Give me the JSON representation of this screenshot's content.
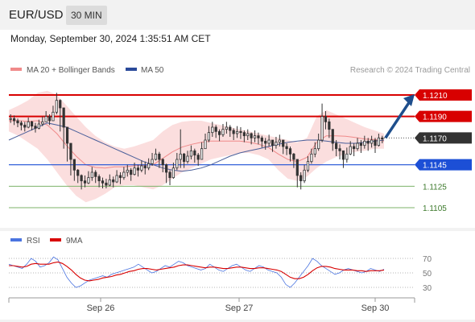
{
  "header": {
    "symbol": "EUR/USD",
    "timeframe": "30 MIN"
  },
  "timestamp": "Monday, September 30, 2024 1:35:51 AM CET",
  "legend": {
    "bollinger": "MA 20 + Bollinger Bands",
    "ma50": "MA 50",
    "copyright": "Research © 2024 Trading Central"
  },
  "colors": {
    "resistance": "#d80000",
    "support": "#1c4fd6",
    "minor": "#7cb36a",
    "last": "#333333",
    "bollinger": "#f08a8a",
    "ma50": "#4a5f9a",
    "candle": "#333333",
    "arrow": "#1e4e8c",
    "rsi": "#4a74e0",
    "rsi_ma": "#d80000"
  },
  "chart_data": [
    {
      "type": "candlestick",
      "x_ticks": [
        "Sep 26",
        "Sep 27",
        "Sep 30"
      ],
      "ylim": [
        1.1087,
        1.1225
      ],
      "levels": [
        {
          "value": 1.121,
          "label": "1.1210",
          "kind": "resistance"
        },
        {
          "value": 1.119,
          "label": "1.1190",
          "kind": "resistance"
        },
        {
          "value": 1.117,
          "label": "1.1170",
          "kind": "last"
        },
        {
          "value": 1.1145,
          "label": "1.1145",
          "kind": "support"
        },
        {
          "value": 1.1125,
          "label": "1.1125",
          "kind": "minor"
        },
        {
          "value": 1.1105,
          "label": "1.1105",
          "kind": "minor"
        }
      ],
      "last_price": 1.117,
      "close": [
        1.1188,
        1.1186,
        1.1184,
        1.1182,
        1.118,
        1.1185,
        1.1181,
        1.1179,
        1.1183,
        1.1185,
        1.119,
        1.1186,
        1.1194,
        1.1205,
        1.1198,
        1.118,
        1.1165,
        1.115,
        1.114,
        1.1135,
        1.113,
        1.1128,
        1.1133,
        1.1138,
        1.1134,
        1.113,
        1.1128,
        1.1126,
        1.1131,
        1.1129,
        1.1135,
        1.1133,
        1.1138,
        1.114,
        1.1136,
        1.1142,
        1.114,
        1.1144,
        1.1142,
        1.1146,
        1.115,
        1.1155,
        1.115,
        1.1145,
        1.1138,
        1.1133,
        1.1142,
        1.115,
        1.1155,
        1.1148,
        1.1153,
        1.1158,
        1.1154,
        1.115,
        1.116,
        1.1168,
        1.1175,
        1.118,
        1.1176,
        1.1173,
        1.1178,
        1.118,
        1.1177,
        1.1174,
        1.1176,
        1.1175,
        1.1172,
        1.1174,
        1.117,
        1.1172,
        1.117,
        1.1167,
        1.1165,
        1.1168,
        1.1163,
        1.1166,
        1.1168,
        1.1162,
        1.116,
        1.1155,
        1.115,
        1.1135,
        1.113,
        1.114,
        1.1148,
        1.1155,
        1.116,
        1.1168,
        1.119,
        1.1185,
        1.1178,
        1.1165,
        1.116,
        1.1158,
        1.115,
        1.1155,
        1.1162,
        1.116,
        1.1165,
        1.1163,
        1.1167,
        1.1165,
        1.1168,
        1.1163,
        1.117,
        1.1169
      ],
      "high": [
        1.1192,
        1.1191,
        1.1188,
        1.1186,
        1.1185,
        1.1189,
        1.1186,
        1.1184,
        1.1187,
        1.119,
        1.1195,
        1.1192,
        1.12,
        1.1212,
        1.1206,
        1.119,
        1.1172,
        1.1158,
        1.1146,
        1.1141,
        1.1136,
        1.1135,
        1.1139,
        1.1143,
        1.114,
        1.1136,
        1.1133,
        1.1132,
        1.1136,
        1.1134,
        1.114,
        1.1138,
        1.1143,
        1.1145,
        1.1142,
        1.1147,
        1.1145,
        1.1149,
        1.1148,
        1.1151,
        1.1156,
        1.116,
        1.1157,
        1.1151,
        1.1146,
        1.114,
        1.1147,
        1.1156,
        1.1178,
        1.1156,
        1.1158,
        1.1163,
        1.116,
        1.1156,
        1.1166,
        1.1174,
        1.1181,
        1.1185,
        1.1182,
        1.1178,
        1.1183,
        1.1185,
        1.1182,
        1.1179,
        1.1181,
        1.118,
        1.1177,
        1.1178,
        1.1175,
        1.1177,
        1.1175,
        1.1172,
        1.117,
        1.1173,
        1.1168,
        1.1171,
        1.1173,
        1.1168,
        1.1165,
        1.1162,
        1.1156,
        1.115,
        1.1138,
        1.1145,
        1.1153,
        1.116,
        1.1166,
        1.1174,
        1.1202,
        1.1195,
        1.1188,
        1.1178,
        1.1168,
        1.1164,
        1.1158,
        1.1161,
        1.1167,
        1.1165,
        1.117,
        1.1168,
        1.1172,
        1.117,
        1.1172,
        1.117,
        1.1174,
        1.1172
      ],
      "low": [
        1.1184,
        1.1182,
        1.118,
        1.1177,
        1.1176,
        1.1179,
        1.1177,
        1.1175,
        1.1178,
        1.1181,
        1.1185,
        1.1182,
        1.1188,
        1.1192,
        1.1176,
        1.116,
        1.1148,
        1.1135,
        1.113,
        1.1128,
        1.1122,
        1.1124,
        1.1127,
        1.113,
        1.1128,
        1.1124,
        1.1123,
        1.1123,
        1.1125,
        1.1124,
        1.1128,
        1.1127,
        1.1131,
        1.1134,
        1.113,
        1.1135,
        1.1134,
        1.1138,
        1.1136,
        1.114,
        1.1144,
        1.1149,
        1.1142,
        1.1138,
        1.1128,
        1.1126,
        1.1132,
        1.114,
        1.1142,
        1.1142,
        1.1146,
        1.115,
        1.1147,
        1.1144,
        1.1151,
        1.116,
        1.1166,
        1.1171,
        1.117,
        1.1167,
        1.1171,
        1.1174,
        1.1171,
        1.1168,
        1.117,
        1.1169,
        1.1166,
        1.1168,
        1.1164,
        1.1166,
        1.1164,
        1.1161,
        1.1159,
        1.1162,
        1.1157,
        1.116,
        1.1162,
        1.1155,
        1.1154,
        1.1148,
        1.1142,
        1.1124,
        1.1122,
        1.1128,
        1.1138,
        1.1146,
        1.1152,
        1.1158,
        1.1166,
        1.1178,
        1.117,
        1.1158,
        1.1153,
        1.115,
        1.1142,
        1.1147,
        1.1154,
        1.1153,
        1.1158,
        1.1156,
        1.116,
        1.1158,
        1.1161,
        1.1156,
        1.1162,
        1.1165
      ],
      "ma50": [
        1.1168,
        1.1172,
        1.1176,
        1.118,
        1.1184,
        1.1182,
        1.118,
        1.1176,
        1.1172,
        1.1168,
        1.1164,
        1.116,
        1.1156,
        1.1152,
        1.1148,
        1.1145,
        1.1142,
        1.114,
        1.1139,
        1.114,
        1.1142,
        1.1145,
        1.1149,
        1.1153,
        1.1156,
        1.1158,
        1.116,
        1.1162,
        1.1164,
        1.1166,
        1.1167,
        1.1168,
        1.1168,
        1.1167,
        1.1166,
        1.1165,
        1.1165,
        1.1166,
        1.1167,
        1.1168
      ],
      "bb_upper": [
        1.1196,
        1.12,
        1.1205,
        1.1212,
        1.1214,
        1.121,
        1.12,
        1.119,
        1.118,
        1.1172,
        1.1166,
        1.1162,
        1.116,
        1.1162,
        1.1165,
        1.1168,
        1.1176,
        1.1182,
        1.1185,
        1.1186,
        1.1186,
        1.1184,
        1.1182,
        1.118,
        1.1178,
        1.1176,
        1.1174,
        1.1172,
        1.117,
        1.1168,
        1.1166,
        1.117,
        1.119,
        1.1196,
        1.1192,
        1.1188,
        1.1184,
        1.118,
        1.1177,
        1.1174
      ],
      "bb_lower": [
        1.1176,
        1.1172,
        1.1166,
        1.116,
        1.115,
        1.1138,
        1.1126,
        1.1116,
        1.111,
        1.1113,
        1.1118,
        1.1124,
        1.1126,
        1.1126,
        1.1124,
        1.1122,
        1.1126,
        1.1132,
        1.1138,
        1.1142,
        1.1146,
        1.115,
        1.1152,
        1.1154,
        1.1156,
        1.1156,
        1.1154,
        1.115,
        1.114,
        1.1132,
        1.113,
        1.1134,
        1.1142,
        1.1148,
        1.1152,
        1.1155,
        1.1157,
        1.1158,
        1.116,
        1.116
      ],
      "forecast": {
        "from": 1.117,
        "to": 1.121
      }
    },
    {
      "type": "line",
      "series": [
        {
          "name": "RSI",
          "values": [
            62,
            60,
            58,
            56,
            62,
            70,
            66,
            58,
            60,
            64,
            72,
            68,
            56,
            44,
            36,
            30,
            32,
            36,
            40,
            42,
            44,
            46,
            44,
            48,
            50,
            52,
            54,
            56,
            58,
            62,
            58,
            54,
            50,
            52,
            56,
            60,
            58,
            62,
            66,
            64,
            60,
            58,
            56,
            54,
            56,
            62,
            58,
            54,
            52,
            56,
            60,
            62,
            58,
            54,
            52,
            56,
            60,
            58,
            54,
            52,
            50,
            44,
            34,
            30,
            36,
            44,
            52,
            60,
            70,
            66,
            60,
            56,
            52,
            48,
            50,
            54,
            56,
            54,
            52,
            50,
            52,
            56,
            54,
            52,
            55
          ]
        },
        {
          "name": "9MA",
          "values": [
            60,
            60,
            59,
            58,
            59,
            62,
            63,
            62,
            62,
            62,
            64,
            65,
            63,
            59,
            54,
            48,
            43,
            40,
            39,
            40,
            41,
            43,
            44,
            45,
            47,
            48,
            50,
            52,
            53,
            55,
            56,
            56,
            55,
            54,
            55,
            56,
            57,
            58,
            60,
            61,
            61,
            60,
            59,
            58,
            57,
            58,
            58,
            57,
            56,
            56,
            57,
            58,
            58,
            57,
            56,
            56,
            57,
            57,
            56,
            55,
            54,
            52,
            48,
            44,
            42,
            42,
            44,
            48,
            53,
            57,
            59,
            59,
            58,
            56,
            55,
            54,
            54,
            54,
            53,
            53,
            52,
            53,
            53,
            53,
            54
          ]
        }
      ],
      "y_ticks": [
        70,
        50,
        30
      ],
      "ylim": [
        20,
        80
      ]
    }
  ]
}
